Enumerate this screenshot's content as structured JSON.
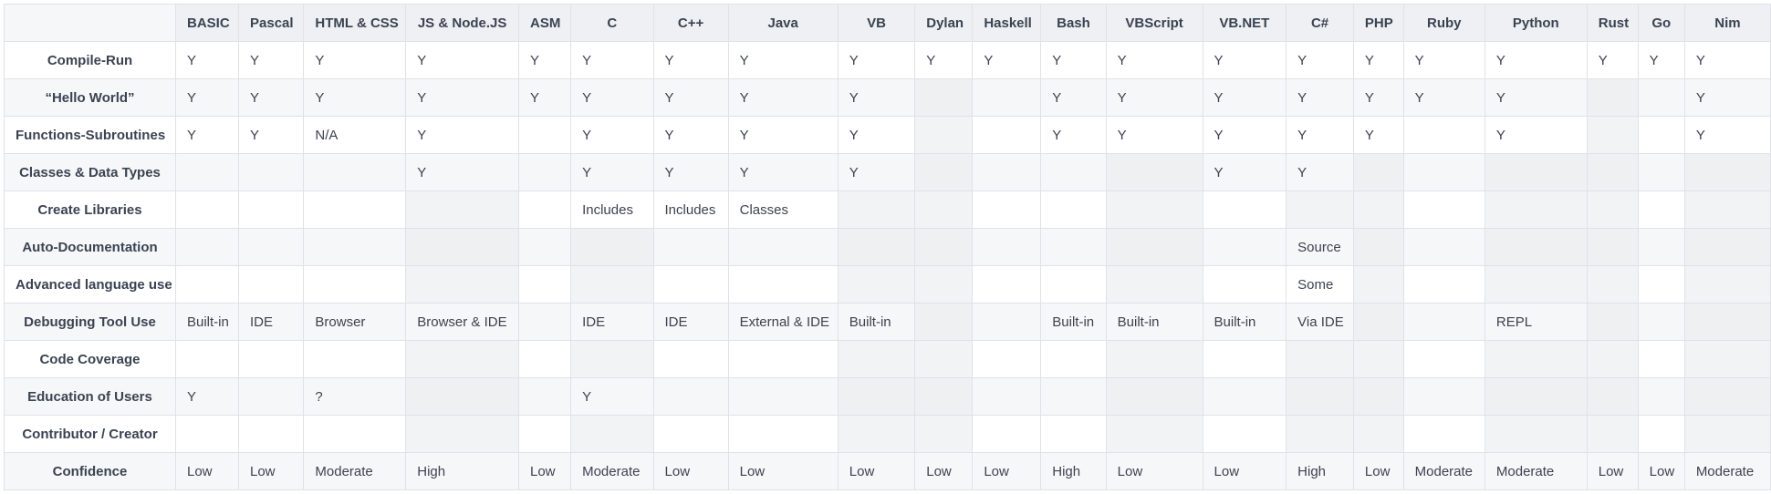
{
  "table": {
    "corner": "",
    "columns": [
      "BASIC",
      "Pascal",
      "HTML & CSS",
      "JS & Node.JS",
      "ASM",
      "C",
      "C++",
      "Java",
      "VB",
      "Dylan",
      "Haskell",
      "Bash",
      "VBScript",
      "VB.NET",
      "C#",
      "PHP",
      "Ruby",
      "Python",
      "Rust",
      "Go",
      "Nim"
    ],
    "rows": [
      {
        "label": "Compile-Run",
        "cells": [
          "Y",
          "Y",
          "Y",
          "Y",
          "Y",
          "Y",
          "Y",
          "Y",
          "Y",
          "Y",
          "Y",
          "Y",
          "Y",
          "Y",
          "Y",
          "Y",
          "Y",
          "Y",
          "Y",
          "Y",
          "Y"
        ]
      },
      {
        "label": "“Hello World”",
        "cells": [
          "Y",
          "Y",
          "Y",
          "Y",
          "Y",
          "Y",
          "Y",
          "Y",
          "Y",
          "",
          "",
          "Y",
          "Y",
          "Y",
          "Y",
          "Y",
          "Y",
          "Y",
          "",
          "",
          "Y"
        ]
      },
      {
        "label": "Functions-Subroutines",
        "cells": [
          "Y",
          "Y",
          "N/A",
          "Y",
          "",
          "Y",
          "Y",
          "Y",
          "Y",
          "",
          "",
          "Y",
          "Y",
          "Y",
          "Y",
          "Y",
          "",
          "Y",
          "",
          "",
          "Y"
        ]
      },
      {
        "label": "Classes & Data Types",
        "cells": [
          "",
          "",
          "",
          "Y",
          "",
          "Y",
          "Y",
          "Y",
          "Y",
          "",
          "",
          "",
          "",
          "Y",
          "Y",
          "",
          "",
          "",
          "",
          "",
          ""
        ]
      },
      {
        "label": "Create Libraries",
        "cells": [
          "",
          "",
          "",
          "",
          "",
          "Includes",
          "Includes",
          "Classes",
          "",
          "",
          "",
          "",
          "",
          "",
          "",
          "",
          "",
          "",
          "",
          "",
          ""
        ]
      },
      {
        "label": "Auto-Documentation",
        "cells": [
          "",
          "",
          "",
          "",
          "",
          "",
          "",
          "",
          "",
          "",
          "",
          "",
          "",
          "",
          "Source",
          "",
          "",
          "",
          "",
          "",
          ""
        ]
      },
      {
        "label": "Advanced language use",
        "cells": [
          "",
          "",
          "",
          "",
          "",
          "",
          "",
          "",
          "",
          "",
          "",
          "",
          "",
          "",
          "Some",
          "",
          "",
          "",
          "",
          "",
          ""
        ]
      },
      {
        "label": "Debugging Tool Use",
        "cells": [
          "Built-in",
          "IDE",
          "Browser",
          "Browser & IDE",
          "",
          "IDE",
          "IDE",
          "External & IDE",
          "Built-in",
          "",
          "",
          "Built-in",
          "Built-in",
          "Built-in",
          "Via IDE",
          "",
          "",
          "REPL",
          "",
          "",
          ""
        ]
      },
      {
        "label": "Code Coverage",
        "cells": [
          "",
          "",
          "",
          "",
          "",
          "",
          "",
          "",
          "",
          "",
          "",
          "",
          "",
          "",
          "",
          "",
          "",
          "",
          "",
          "",
          ""
        ]
      },
      {
        "label": "Education of Users",
        "cells": [
          "Y",
          "",
          "?",
          "",
          "",
          "Y",
          "",
          "",
          "",
          "",
          "",
          "",
          "",
          "",
          "",
          "",
          "",
          "",
          "",
          "",
          ""
        ]
      },
      {
        "label": "Contributor / Creator",
        "cells": [
          "",
          "",
          "",
          "",
          "",
          "",
          "",
          "",
          "",
          "",
          "",
          "",
          "",
          "",
          "",
          "",
          "",
          "",
          "",
          "",
          ""
        ]
      },
      {
        "label": "Confidence",
        "cells": [
          "Low",
          "Low",
          "Moderate",
          "High",
          "Low",
          "Moderate",
          "Low",
          "Low",
          "Low",
          "Low",
          "Low",
          "High",
          "Low",
          "Low",
          "High",
          "Low",
          "Moderate",
          "Moderate",
          "Low",
          "Low",
          "Moderate"
        ]
      }
    ]
  }
}
